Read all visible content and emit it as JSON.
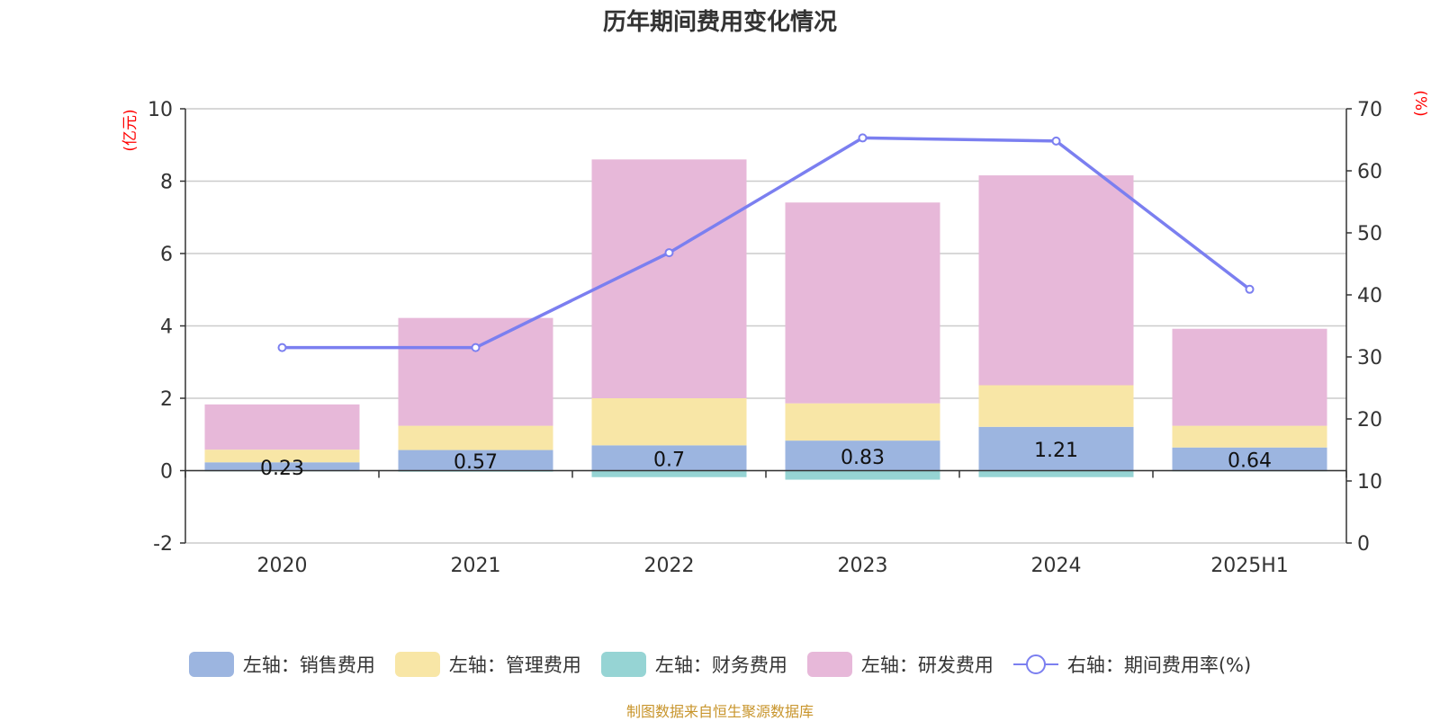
{
  "title": "历年期间费用变化情况",
  "source_note": "制图数据来自恒生聚源数据库",
  "chart_data": {
    "type": "bar",
    "stacked": true,
    "categories": [
      "2020",
      "2021",
      "2022",
      "2023",
      "2024",
      "2025H1"
    ],
    "series": [
      {
        "name": "左轴：销售费用",
        "axis": "left",
        "color": "#9cb5e0",
        "values": [
          0.23,
          0.57,
          0.7,
          0.83,
          1.21,
          0.64
        ],
        "labels": [
          "0.23",
          "0.57",
          "0.7",
          "0.83",
          "1.21",
          "0.64"
        ]
      },
      {
        "name": "左轴：管理费用",
        "axis": "left",
        "color": "#f8e6a6",
        "values": [
          0.35,
          0.67,
          1.3,
          1.03,
          1.15,
          0.6
        ]
      },
      {
        "name": "左轴：财务费用",
        "axis": "left",
        "color": "#96d4d4",
        "values": [
          -0.02,
          -0.03,
          -0.18,
          -0.25,
          -0.18,
          -0.02
        ]
      },
      {
        "name": "左轴：研发费用",
        "axis": "left",
        "color": "#e7b8d9",
        "values": [
          1.25,
          2.98,
          6.6,
          5.55,
          5.8,
          2.68
        ]
      },
      {
        "name": "右轴：期间费用率(%)",
        "axis": "right",
        "type": "line",
        "color": "#7b7ff0",
        "values": [
          31.5,
          31.5,
          46.8,
          65.3,
          64.8,
          40.9
        ]
      }
    ],
    "left_axis": {
      "unit": "(亿元)",
      "ylim": [
        -2,
        10
      ],
      "ticks": [
        "-2",
        "0",
        "2",
        "4",
        "6",
        "8",
        "10"
      ]
    },
    "right_axis": {
      "unit": "(%)",
      "ylim": [
        0,
        70
      ],
      "ticks": [
        "0",
        "10",
        "20",
        "30",
        "40",
        "50",
        "60",
        "70"
      ]
    },
    "grid": true,
    "legend_position": "bottom"
  }
}
